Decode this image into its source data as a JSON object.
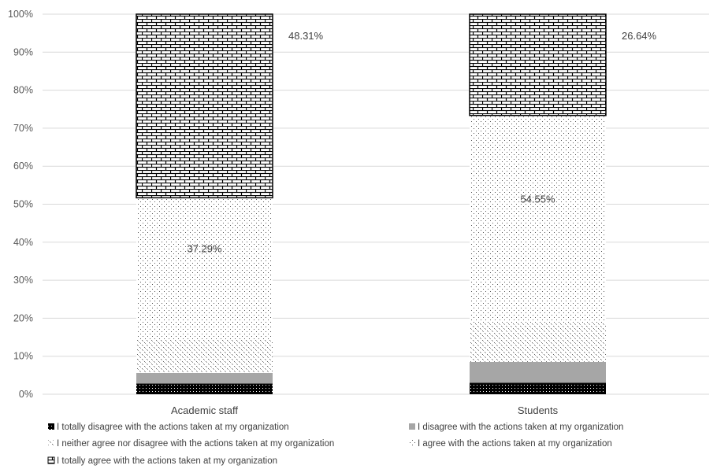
{
  "chart_data": {
    "type": "bar",
    "stacked": true,
    "percent": true,
    "categories": [
      "Academic staff",
      "Students"
    ],
    "ylim": [
      0,
      100
    ],
    "yticks": [
      "0%",
      "10%",
      "20%",
      "30%",
      "40%",
      "50%",
      "60%",
      "70%",
      "80%",
      "90%",
      "100%"
    ],
    "grid": true,
    "legend_position": "bottom",
    "series": [
      {
        "name": "I totally disagree with the actions taken at my organization",
        "values": [
          2.8,
          3.0
        ],
        "pattern": "dots-black"
      },
      {
        "name": "I disagree with the actions taken at my organization",
        "values": [
          2.8,
          5.5
        ],
        "pattern": "gray"
      },
      {
        "name": "I neither agree nor disagree with the actions taken at my organization",
        "values": [
          8.8,
          10.3
        ],
        "pattern": "cross-dots"
      },
      {
        "name": "I agree with the actions taken at my organization",
        "values": [
          37.29,
          54.55
        ],
        "pattern": "sparse-dots"
      },
      {
        "name": "I totally agree with the actions taken at my organization",
        "values": [
          48.31,
          26.64
        ],
        "pattern": "bricks"
      }
    ],
    "data_labels": [
      {
        "series": 3,
        "category": 0,
        "text": "37.29%"
      },
      {
        "series": 4,
        "category": 0,
        "text": "48.31%"
      },
      {
        "series": 3,
        "category": 1,
        "text": "54.55%"
      },
      {
        "series": 4,
        "category": 1,
        "text": "26.64%"
      }
    ],
    "colors": {
      "grid": "#d9d9d9",
      "gray": "#a6a6a6",
      "black": "#000000",
      "text": "#404040",
      "axis_text": "#595959"
    }
  }
}
